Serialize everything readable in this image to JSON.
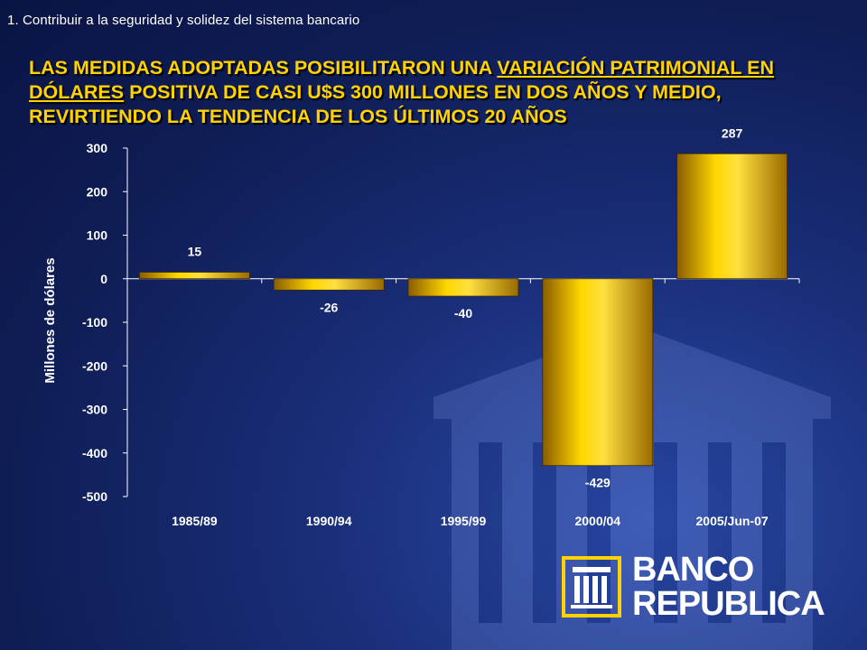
{
  "header": {
    "section": "1.  Contribuir a la seguridad y solidez del sistema  bancario",
    "headline_parts": [
      {
        "text": "LAS MEDIDAS ADOPTADAS POSIBILITARON UNA ",
        "underline": false
      },
      {
        "text": "VARIACIÓN PATRIMONIAL EN DÓLARES",
        "underline": true
      },
      {
        "text": " POSITIVA DE CASI U$S 300 MILLONES EN DOS AÑOS Y MEDIO, REVIRTIENDO LA TENDENCIA DE LOS ÚLTIMOS 20 AÑOS",
        "underline": false
      }
    ]
  },
  "logo": {
    "line1": "BANCO",
    "line2": "REPUBLICA",
    "icon": "bank-building-icon",
    "accent": "#ffd200"
  },
  "colors": {
    "bar_light": "#ffd700",
    "bar_dark": "#9a6a00",
    "text": "#ffffff"
  },
  "chart_data": {
    "type": "bar",
    "categories": [
      "1985/89",
      "1990/94",
      "1995/99",
      "2000/04",
      "2005/Jun-07"
    ],
    "values": [
      15,
      -26,
      -40,
      -429,
      287
    ],
    "data_labels": [
      "15",
      "-26",
      "-40",
      "-429",
      "287"
    ],
    "title": "",
    "xlabel": "",
    "ylabel": "Millones de dólares",
    "ylim": [
      -500,
      300
    ],
    "yticks": [
      300,
      200,
      100,
      0,
      -100,
      -200,
      -300,
      -400,
      -500
    ],
    "grid": false,
    "legend": "none"
  }
}
